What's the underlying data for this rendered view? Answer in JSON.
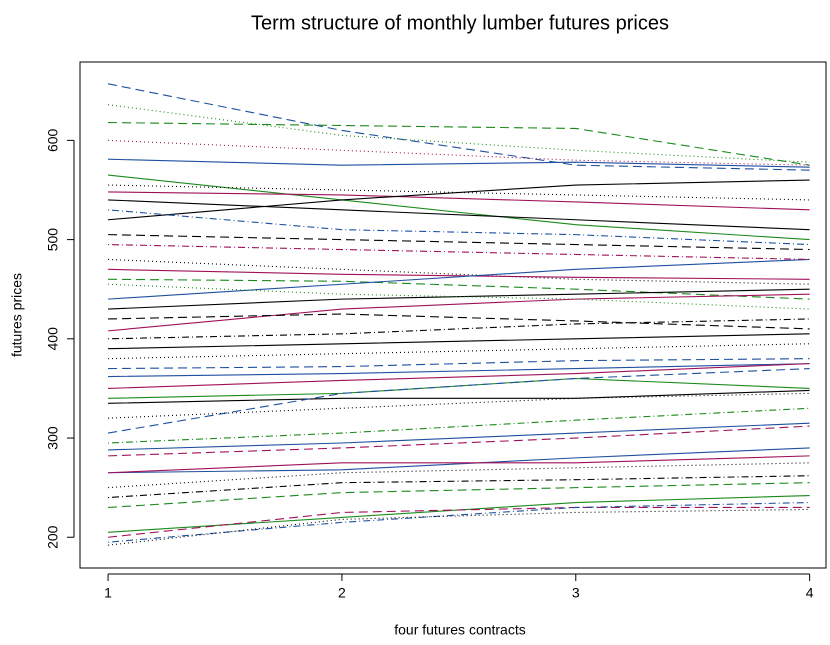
{
  "chart_data": {
    "type": "line",
    "title": "Term structure of monthly lumber futures prices",
    "x_label": "four futures contracts",
    "y_label": "futures prices",
    "x": [
      1,
      2,
      3,
      4
    ],
    "xlim": [
      0.88,
      4.07
    ],
    "xticks": [
      1,
      2,
      3,
      4
    ],
    "ylim": [
      169,
      679
    ],
    "yticks": [
      200,
      300,
      400,
      500,
      600
    ],
    "grid": false,
    "series": [
      {
        "color": "#1f4fa0",
        "dash": "dashed",
        "values": [
          657,
          610,
          575,
          570
        ]
      },
      {
        "color": "#1a8a1a",
        "dash": "dotted",
        "values": [
          636,
          605,
          590,
          578
        ]
      },
      {
        "color": "#1a8a1a",
        "dash": "dashed",
        "values": [
          618,
          615,
          612,
          575
        ]
      },
      {
        "color": "#1f4fa0",
        "dash": "solid",
        "values": [
          581,
          575,
          578,
          573
        ]
      },
      {
        "color": "#1a8a1a",
        "dash": "solid",
        "values": [
          565,
          540,
          515,
          500
        ]
      },
      {
        "color": "#a0105a",
        "dash": "solid",
        "values": [
          548,
          545,
          538,
          530
        ]
      },
      {
        "color": "#000000",
        "dash": "solid",
        "values": [
          540,
          530,
          520,
          510
        ]
      },
      {
        "color": "#000000",
        "dash": "solid",
        "values": [
          520,
          540,
          555,
          560
        ]
      },
      {
        "color": "#1f4fa0",
        "dash": "dotdash",
        "values": [
          530,
          510,
          505,
          495
        ]
      },
      {
        "color": "#000000",
        "dash": "dashed",
        "values": [
          505,
          500,
          495,
          490
        ]
      },
      {
        "color": "#000000",
        "dash": "dotted",
        "values": [
          480,
          470,
          460,
          455
        ]
      },
      {
        "color": "#a0105a",
        "dash": "solid",
        "values": [
          470,
          465,
          462,
          460
        ]
      },
      {
        "color": "#1a8a1a",
        "dash": "dashed",
        "values": [
          460,
          458,
          450,
          440
        ]
      },
      {
        "color": "#1f4fa0",
        "dash": "solid",
        "values": [
          440,
          455,
          470,
          480
        ]
      },
      {
        "color": "#000000",
        "dash": "solid",
        "values": [
          430,
          440,
          445,
          450
        ]
      },
      {
        "color": "#a0105a",
        "dash": "solid",
        "values": [
          408,
          430,
          440,
          445
        ]
      },
      {
        "color": "#000000",
        "dash": "dotdash",
        "values": [
          400,
          405,
          415,
          420
        ]
      },
      {
        "color": "#000000",
        "dash": "solid",
        "values": [
          390,
          395,
          400,
          405
        ]
      },
      {
        "color": "#1f4fa0",
        "dash": "dashed",
        "values": [
          370,
          372,
          378,
          380
        ]
      },
      {
        "color": "#1f4fa0",
        "dash": "solid",
        "values": [
          362,
          365,
          370,
          375
        ]
      },
      {
        "color": "#a0105a",
        "dash": "solid",
        "values": [
          350,
          358,
          365,
          375
        ]
      },
      {
        "color": "#1a8a1a",
        "dash": "solid",
        "values": [
          340,
          345,
          360,
          350
        ]
      },
      {
        "color": "#000000",
        "dash": "solid",
        "values": [
          335,
          340,
          340,
          348
        ]
      },
      {
        "color": "#1f4fa0",
        "dash": "dashed",
        "values": [
          305,
          345,
          360,
          370
        ]
      },
      {
        "color": "#1a8a1a",
        "dash": "dotdash",
        "values": [
          295,
          305,
          318,
          330
        ]
      },
      {
        "color": "#1f4fa0",
        "dash": "solid",
        "values": [
          288,
          295,
          305,
          315
        ]
      },
      {
        "color": "#a0105a",
        "dash": "dashed",
        "values": [
          282,
          290,
          300,
          312
        ]
      },
      {
        "color": "#1f4fa0",
        "dash": "solid",
        "values": [
          265,
          268,
          280,
          290
        ]
      },
      {
        "color": "#a0105a",
        "dash": "solid",
        "values": [
          265,
          275,
          275,
          282
        ]
      },
      {
        "color": "#000000",
        "dash": "dotted",
        "values": [
          250,
          265,
          270,
          275
        ]
      },
      {
        "color": "#000000",
        "dash": "dotdash",
        "values": [
          240,
          255,
          258,
          262
        ]
      },
      {
        "color": "#1a8a1a",
        "dash": "dashed",
        "values": [
          230,
          245,
          250,
          255
        ]
      },
      {
        "color": "#1a8a1a",
        "dash": "solid",
        "values": [
          205,
          220,
          235,
          242
        ]
      },
      {
        "color": "#a0105a",
        "dash": "dashed",
        "values": [
          200,
          225,
          230,
          230
        ]
      },
      {
        "color": "#1f4fa0",
        "dash": "dotdash",
        "values": [
          195,
          215,
          230,
          235
        ]
      },
      {
        "color": "#000000",
        "dash": "dotted",
        "values": [
          192,
          218,
          225,
          228
        ]
      },
      {
        "color": "#a0105a",
        "dash": "dotted",
        "values": [
          600,
          590,
          580,
          575
        ]
      },
      {
        "color": "#000000",
        "dash": "dotted",
        "values": [
          555,
          550,
          545,
          540
        ]
      },
      {
        "color": "#a0105a",
        "dash": "dotdash",
        "values": [
          495,
          490,
          485,
          480
        ]
      },
      {
        "color": "#000000",
        "dash": "dashed",
        "values": [
          420,
          425,
          418,
          410
        ]
      },
      {
        "color": "#1a8a1a",
        "dash": "dotted",
        "values": [
          455,
          445,
          440,
          430
        ]
      },
      {
        "color": "#000000",
        "dash": "dotted",
        "values": [
          380,
          385,
          390,
          395
        ]
      },
      {
        "color": "#000000",
        "dash": "dotted",
        "values": [
          320,
          330,
          340,
          345
        ]
      }
    ]
  }
}
